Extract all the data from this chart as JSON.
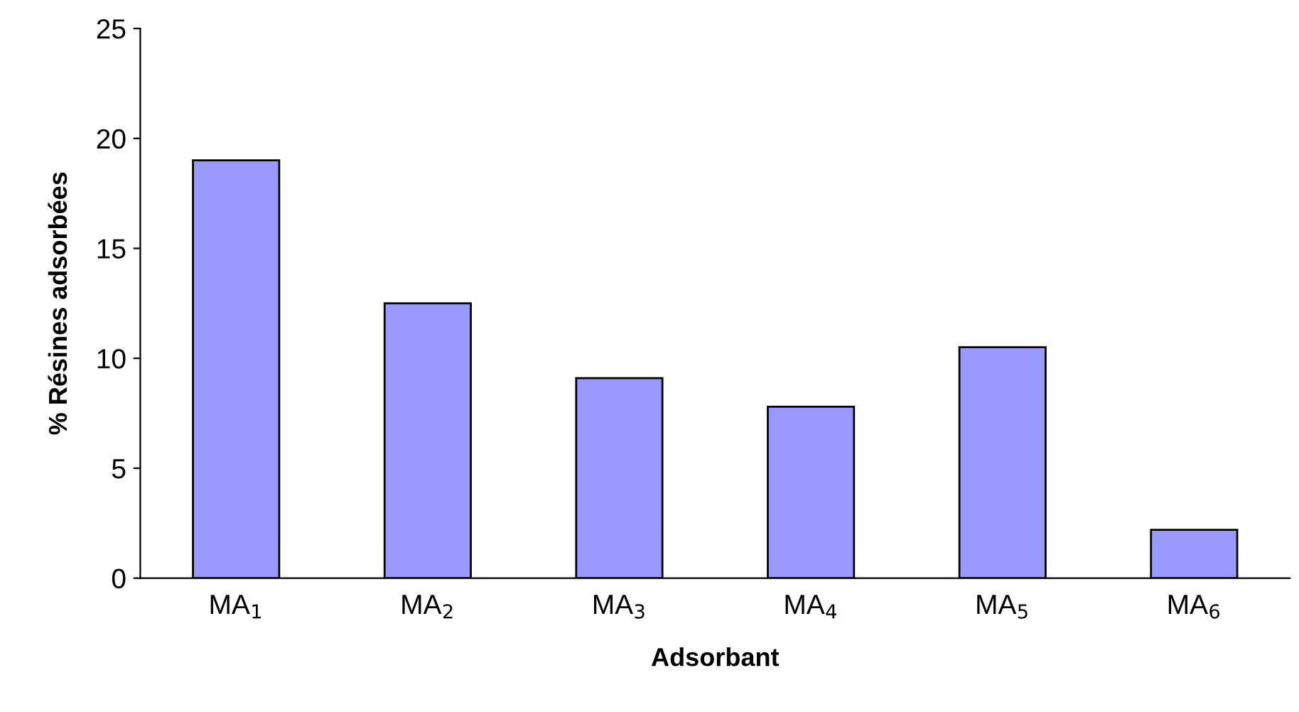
{
  "chart_data": {
    "type": "bar",
    "xlabel": "Adsorbant",
    "ylabel": "% Résines adsorbées",
    "categories": [
      "MA$_{1}$",
      "MA$_{2}$",
      "MA$_{3}$",
      "MA$_{4}$",
      "MA$_{5}$",
      "MA$_{6}$"
    ],
    "values": [
      19.0,
      12.5,
      9.1,
      7.8,
      10.5,
      2.2
    ],
    "color": "#9999ff",
    "ylim": [
      0,
      25
    ],
    "yticks": [
      0,
      5,
      10,
      15,
      20,
      25
    ],
    "grid": false
  }
}
